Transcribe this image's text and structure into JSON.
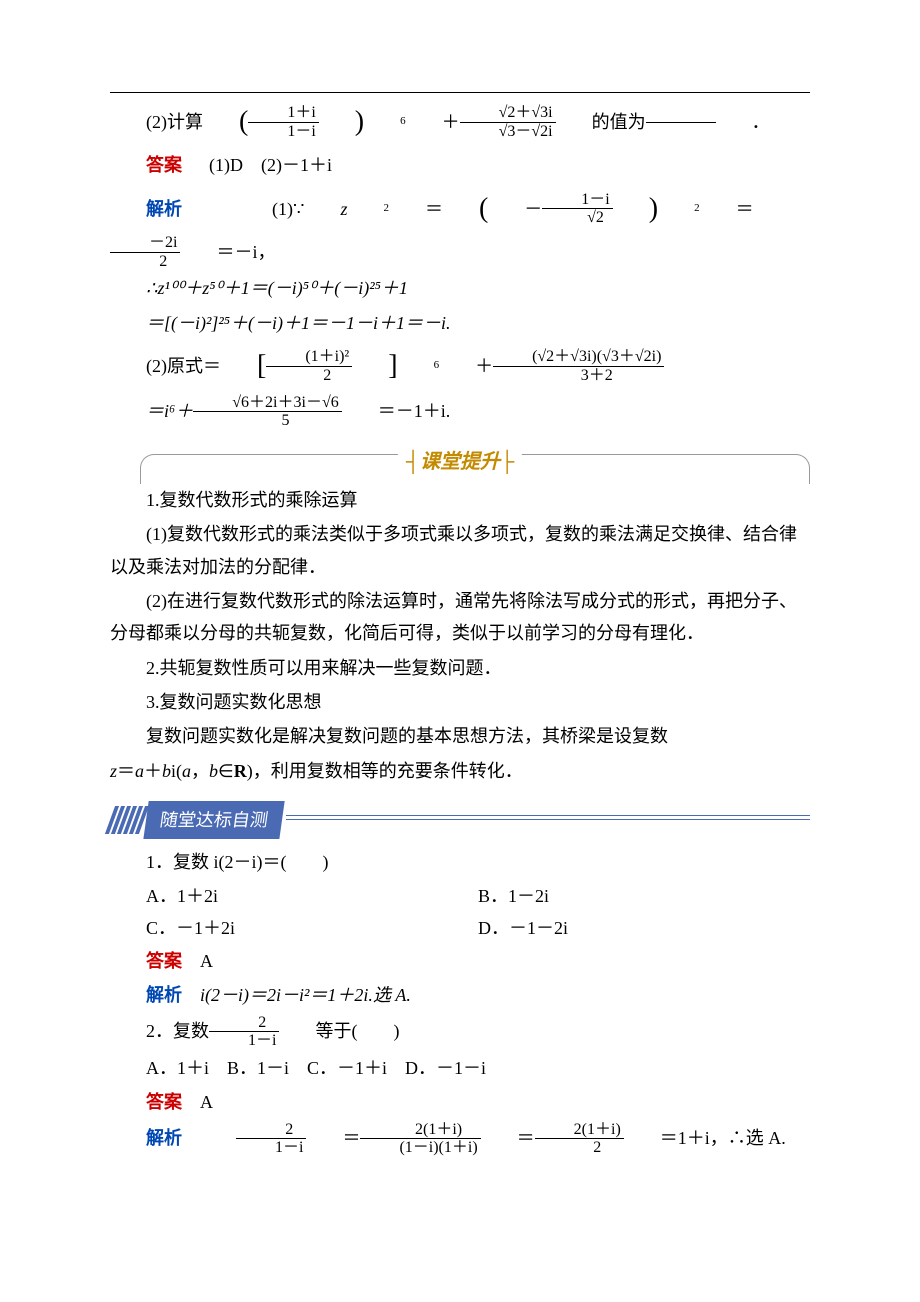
{
  "text_color": "#000000",
  "background_color": "#ffffff",
  "red_color": "#cc0000",
  "blue_color": "#0047b3",
  "banner_color": "#c48a00",
  "tag_color": "#4a6ab3",
  "body_font_size": 18,
  "top": {
    "q2_prefix": "(2)计算",
    "q2_suffix": "的值为",
    "expr_a_num": "1＋i",
    "expr_a_den": "1－i",
    "expr_a_exp": "6",
    "plus": "＋",
    "expr_b_num": "√2＋√3i",
    "expr_b_den": "√3－√2i",
    "period": "．"
  },
  "answer": {
    "label": "答案",
    "text": "(1)D　(2)－1＋i"
  },
  "analysis": {
    "label": "解析",
    "line1_pre": "(1)∵",
    "z": "z",
    "sq": "2",
    "eq": "＝",
    "lp_num": "1－i",
    "lp_den": "√2",
    "lp_exp": "2",
    "mid_num": "－2i",
    "mid_den": "2",
    "tail": "＝－i，",
    "line2": "∴z¹⁰⁰＋z⁵⁰＋1＝(－i)⁵⁰＋(－i)²⁵＋1",
    "line3": "＝[(－i)²]²⁵＋(－i)＋1＝－1－i＋1＝－i.",
    "line4_pre": "(2)原式＝",
    "br_num": "(1＋i)²",
    "br_den": "2",
    "br_exp": "6",
    "plus2": "＋",
    "rt_num": "(√2＋√3i)(√3＋√2i)",
    "rt_den": "3＋2",
    "line5_pre": "＝i⁶＋",
    "l5_num": "√6＋2i＋3i－√6",
    "l5_den": "5",
    "l5_tail": "＝－1＋i."
  },
  "banner_text": "课堂提升",
  "summary": {
    "p1": "1.复数代数形式的乘除运算",
    "p2": "(1)复数代数形式的乘法类似于多项式乘以多项式，复数的乘法满足交换律、结合律以及乘法对加法的分配律．",
    "p3": "(2)在进行复数代数形式的除法运算时，通常先将除法写成分式的形式，再把分子、分母都乘以分母的共轭复数，化简后可得，类似于以前学习的分母有理化．",
    "p4": "2.共轭复数性质可以用来解决一些复数问题．",
    "p5": "3.复数问题实数化思想",
    "p6a": "复数问题实数化是解决复数问题的基本思想方法，其桥梁是设复数",
    "p6b": "z＝a＋bi(a，b∈R)，利用复数相等的充要条件转化．"
  },
  "section_tag": "随堂达标自测",
  "q1": {
    "stem": "1．复数 i(2－i)＝(　　)",
    "A": "A．1＋2i",
    "B": "B．1－2i",
    "C": "C．－1＋2i",
    "D": "D．－1－2i",
    "ans_label": "答案",
    "ans": "A",
    "ana_label": "解析",
    "ana": "i(2－i)＝2i－i²＝1＋2i.选 A."
  },
  "q2": {
    "stem_pre": "2．复数",
    "frac_num": "2",
    "frac_den": "1－i",
    "stem_post": "等于(　　)",
    "opts": "A．1＋i　B．1－i　C．－1＋i　D．－1－i",
    "ans_label": "答案",
    "ans": "A",
    "ana_label": "解析",
    "f1n": "2",
    "f1d": "1－i",
    "f2n": "2(1＋i)",
    "f2d": "(1－i)(1＋i)",
    "f3n": "2(1＋i)",
    "f3d": "2",
    "tail": "＝1＋i，∴选 A."
  }
}
